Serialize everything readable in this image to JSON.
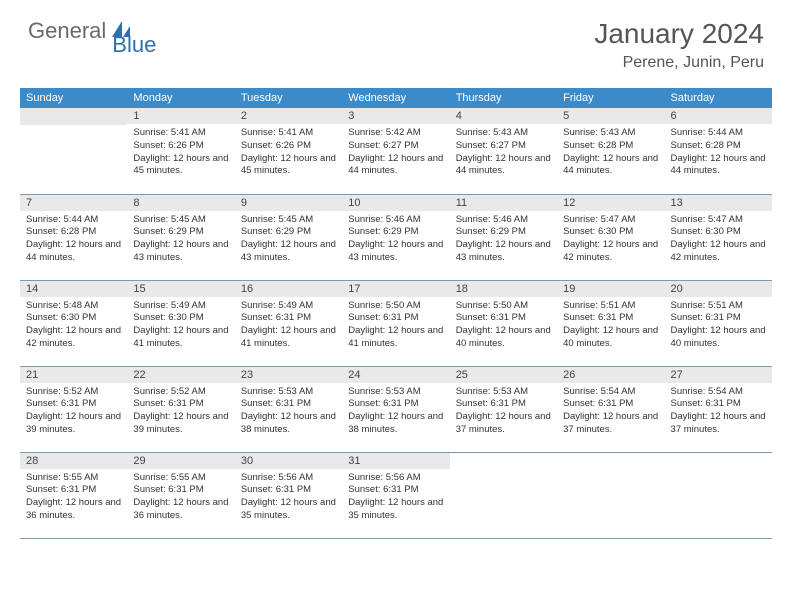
{
  "brand": {
    "part1": "General",
    "part2": "Blue"
  },
  "title": "January 2024",
  "location": "Perene, Junin, Peru",
  "colors": {
    "header_bg": "#3b8bca",
    "header_text": "#ffffff",
    "daynum_bg": "#e9e9e9",
    "row_border": "#7a9bb5",
    "logo_gray": "#6a6a6a",
    "logo_blue": "#2f6fb0"
  },
  "weekdays": [
    "Sunday",
    "Monday",
    "Tuesday",
    "Wednesday",
    "Thursday",
    "Friday",
    "Saturday"
  ],
  "start_weekday": 1,
  "days": [
    {
      "n": 1,
      "sunrise": "5:41 AM",
      "sunset": "6:26 PM",
      "daylight": "12 hours and 45 minutes."
    },
    {
      "n": 2,
      "sunrise": "5:41 AM",
      "sunset": "6:26 PM",
      "daylight": "12 hours and 45 minutes."
    },
    {
      "n": 3,
      "sunrise": "5:42 AM",
      "sunset": "6:27 PM",
      "daylight": "12 hours and 44 minutes."
    },
    {
      "n": 4,
      "sunrise": "5:43 AM",
      "sunset": "6:27 PM",
      "daylight": "12 hours and 44 minutes."
    },
    {
      "n": 5,
      "sunrise": "5:43 AM",
      "sunset": "6:28 PM",
      "daylight": "12 hours and 44 minutes."
    },
    {
      "n": 6,
      "sunrise": "5:44 AM",
      "sunset": "6:28 PM",
      "daylight": "12 hours and 44 minutes."
    },
    {
      "n": 7,
      "sunrise": "5:44 AM",
      "sunset": "6:28 PM",
      "daylight": "12 hours and 44 minutes."
    },
    {
      "n": 8,
      "sunrise": "5:45 AM",
      "sunset": "6:29 PM",
      "daylight": "12 hours and 43 minutes."
    },
    {
      "n": 9,
      "sunrise": "5:45 AM",
      "sunset": "6:29 PM",
      "daylight": "12 hours and 43 minutes."
    },
    {
      "n": 10,
      "sunrise": "5:46 AM",
      "sunset": "6:29 PM",
      "daylight": "12 hours and 43 minutes."
    },
    {
      "n": 11,
      "sunrise": "5:46 AM",
      "sunset": "6:29 PM",
      "daylight": "12 hours and 43 minutes."
    },
    {
      "n": 12,
      "sunrise": "5:47 AM",
      "sunset": "6:30 PM",
      "daylight": "12 hours and 42 minutes."
    },
    {
      "n": 13,
      "sunrise": "5:47 AM",
      "sunset": "6:30 PM",
      "daylight": "12 hours and 42 minutes."
    },
    {
      "n": 14,
      "sunrise": "5:48 AM",
      "sunset": "6:30 PM",
      "daylight": "12 hours and 42 minutes."
    },
    {
      "n": 15,
      "sunrise": "5:49 AM",
      "sunset": "6:30 PM",
      "daylight": "12 hours and 41 minutes."
    },
    {
      "n": 16,
      "sunrise": "5:49 AM",
      "sunset": "6:31 PM",
      "daylight": "12 hours and 41 minutes."
    },
    {
      "n": 17,
      "sunrise": "5:50 AM",
      "sunset": "6:31 PM",
      "daylight": "12 hours and 41 minutes."
    },
    {
      "n": 18,
      "sunrise": "5:50 AM",
      "sunset": "6:31 PM",
      "daylight": "12 hours and 40 minutes."
    },
    {
      "n": 19,
      "sunrise": "5:51 AM",
      "sunset": "6:31 PM",
      "daylight": "12 hours and 40 minutes."
    },
    {
      "n": 20,
      "sunrise": "5:51 AM",
      "sunset": "6:31 PM",
      "daylight": "12 hours and 40 minutes."
    },
    {
      "n": 21,
      "sunrise": "5:52 AM",
      "sunset": "6:31 PM",
      "daylight": "12 hours and 39 minutes."
    },
    {
      "n": 22,
      "sunrise": "5:52 AM",
      "sunset": "6:31 PM",
      "daylight": "12 hours and 39 minutes."
    },
    {
      "n": 23,
      "sunrise": "5:53 AM",
      "sunset": "6:31 PM",
      "daylight": "12 hours and 38 minutes."
    },
    {
      "n": 24,
      "sunrise": "5:53 AM",
      "sunset": "6:31 PM",
      "daylight": "12 hours and 38 minutes."
    },
    {
      "n": 25,
      "sunrise": "5:53 AM",
      "sunset": "6:31 PM",
      "daylight": "12 hours and 37 minutes."
    },
    {
      "n": 26,
      "sunrise": "5:54 AM",
      "sunset": "6:31 PM",
      "daylight": "12 hours and 37 minutes."
    },
    {
      "n": 27,
      "sunrise": "5:54 AM",
      "sunset": "6:31 PM",
      "daylight": "12 hours and 37 minutes."
    },
    {
      "n": 28,
      "sunrise": "5:55 AM",
      "sunset": "6:31 PM",
      "daylight": "12 hours and 36 minutes."
    },
    {
      "n": 29,
      "sunrise": "5:55 AM",
      "sunset": "6:31 PM",
      "daylight": "12 hours and 36 minutes."
    },
    {
      "n": 30,
      "sunrise": "5:56 AM",
      "sunset": "6:31 PM",
      "daylight": "12 hours and 35 minutes."
    },
    {
      "n": 31,
      "sunrise": "5:56 AM",
      "sunset": "6:31 PM",
      "daylight": "12 hours and 35 minutes."
    }
  ],
  "labels": {
    "sunrise": "Sunrise:",
    "sunset": "Sunset:",
    "daylight": "Daylight:"
  }
}
